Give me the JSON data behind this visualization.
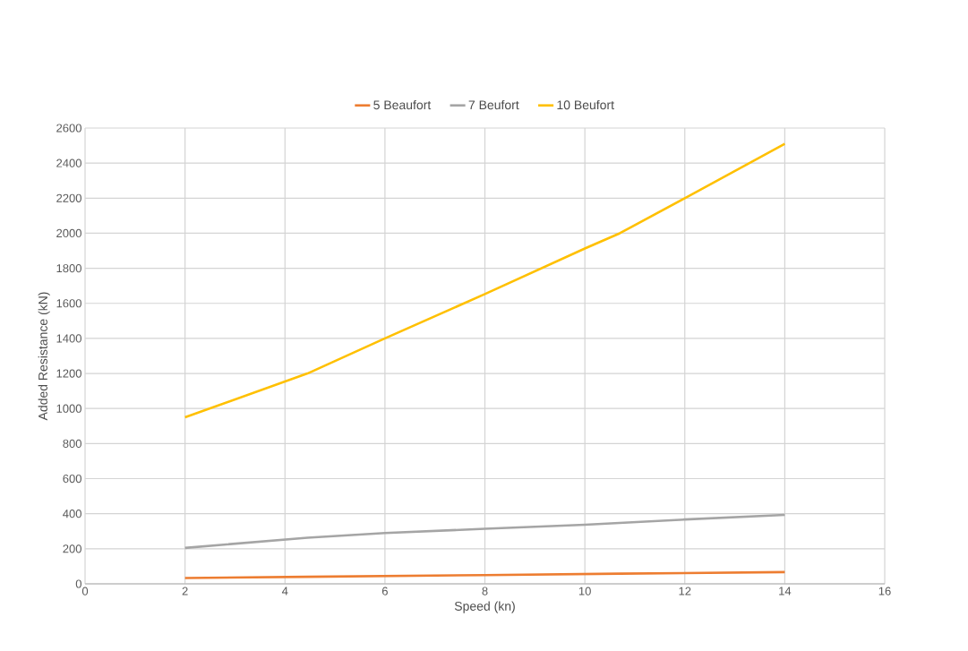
{
  "chart_data": {
    "type": "line",
    "xlabel": "Speed (kn)",
    "ylabel": "Added Resistance (kN)",
    "xlim": [
      0,
      16
    ],
    "xticks": [
      0,
      2,
      4,
      6,
      8,
      10,
      12,
      14,
      16
    ],
    "ylim": [
      0,
      2600
    ],
    "yticks": [
      0,
      200,
      400,
      600,
      800,
      1000,
      1200,
      1400,
      1600,
      1800,
      2000,
      2200,
      2400,
      2600
    ],
    "grid": true,
    "legend": "top",
    "marker": "none",
    "line_style": "solid",
    "series": [
      {
        "name": "5 Beaufort",
        "color": "#ed7d31",
        "x": [
          2,
          4.45,
          8,
          10.7,
          14
        ],
        "values": [
          33,
          40,
          50,
          58,
          67
        ]
      },
      {
        "name": "7 Beufort",
        "color": "#a5a5a5",
        "x": [
          2,
          4.45,
          6,
          8,
          10,
          12,
          14
        ],
        "values": [
          205,
          263,
          290,
          314,
          337,
          367,
          393
        ]
      },
      {
        "name": "10 Beufort",
        "color": "#ffc000",
        "x": [
          2,
          4.45,
          6,
          8,
          10,
          10.7,
          12,
          14
        ],
        "values": [
          950,
          1200,
          1400,
          1653,
          1913,
          2000,
          2200,
          2510
        ]
      }
    ]
  }
}
